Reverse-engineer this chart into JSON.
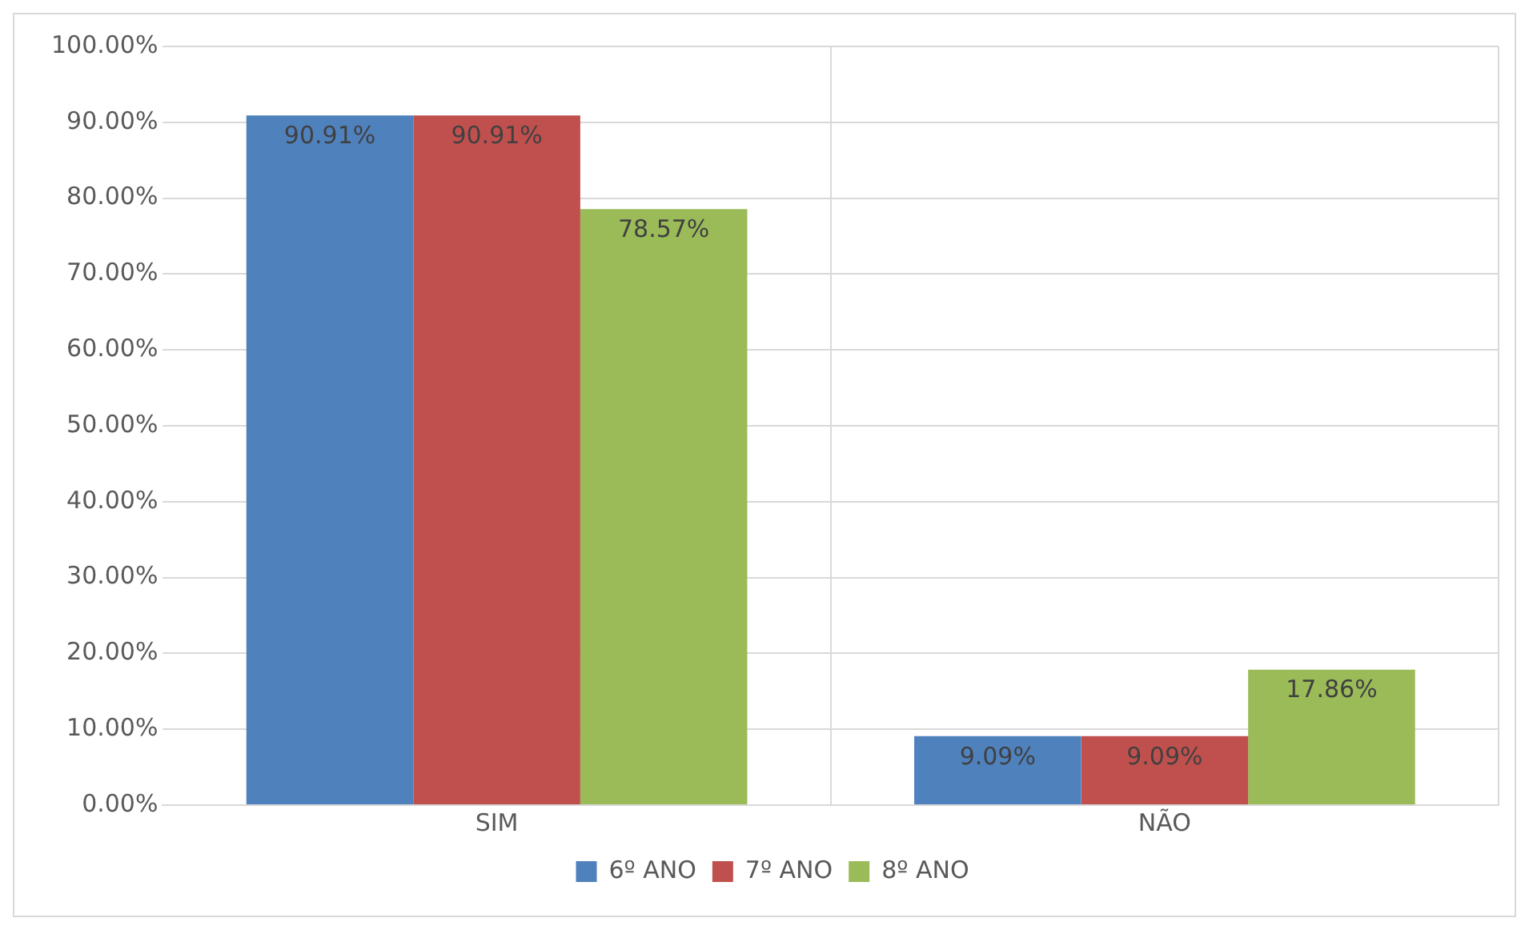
{
  "chart_data": {
    "type": "bar",
    "categories": [
      "SIM",
      "NÃO"
    ],
    "series": [
      {
        "name": "6º ANO",
        "color": "#4f81bd",
        "values": [
          90.91,
          9.09
        ],
        "value_labels": [
          "90.91%",
          "9.09%"
        ]
      },
      {
        "name": "7º ANO",
        "color": "#c0504d",
        "values": [
          90.91,
          9.09
        ],
        "value_labels": [
          "90.91%",
          "9.09%"
        ]
      },
      {
        "name": "8º ANO",
        "color": "#9bbb59",
        "values": [
          78.57,
          17.86
        ],
        "value_labels": [
          "78.57%",
          "17.86%"
        ]
      }
    ],
    "ylim": [
      0,
      100
    ],
    "yticks": [
      {
        "value": 0,
        "label": "0.00%"
      },
      {
        "value": 10,
        "label": "10.00%"
      },
      {
        "value": 20,
        "label": "20.00%"
      },
      {
        "value": 30,
        "label": "30.00%"
      },
      {
        "value": 40,
        "label": "40.00%"
      },
      {
        "value": 50,
        "label": "50.00%"
      },
      {
        "value": 60,
        "label": "60.00%"
      },
      {
        "value": 70,
        "label": "70.00%"
      },
      {
        "value": 80,
        "label": "80.00%"
      },
      {
        "value": 90,
        "label": "90.00%"
      },
      {
        "value": 100,
        "label": "100.00%"
      }
    ],
    "grid": true,
    "legend": "bottom"
  }
}
